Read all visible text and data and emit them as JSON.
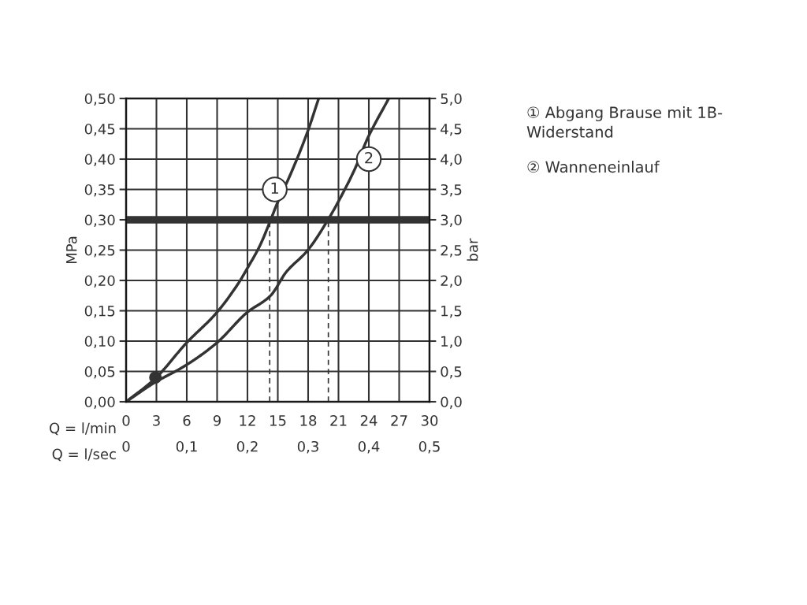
{
  "chart_data": {
    "type": "line",
    "xlabel": "Q = l/min",
    "x2label": "Q = l/sec",
    "ylabel": "MPa",
    "y2label": "bar",
    "xlim": [
      0,
      30
    ],
    "xticks": [
      0,
      3,
      6,
      9,
      12,
      15,
      18,
      21,
      24,
      27,
      30
    ],
    "x2lim": [
      0,
      0.5
    ],
    "x2ticks": [
      {
        "value": 0,
        "label": "0"
      },
      {
        "value": 0.1,
        "label": "0,1"
      },
      {
        "value": 0.2,
        "label": "0,2"
      },
      {
        "value": 0.3,
        "label": "0,3"
      },
      {
        "value": 0.4,
        "label": "0,4"
      },
      {
        "value": 0.5,
        "label": "0,5"
      }
    ],
    "ylim": [
      0,
      0.5
    ],
    "yticks": [
      {
        "value": 0,
        "label": "0,00"
      },
      {
        "value": 0.05,
        "label": "0,05"
      },
      {
        "value": 0.1,
        "label": "0,10"
      },
      {
        "value": 0.15,
        "label": "0,15"
      },
      {
        "value": 0.2,
        "label": "0,20"
      },
      {
        "value": 0.25,
        "label": "0,25"
      },
      {
        "value": 0.3,
        "label": "0,30"
      },
      {
        "value": 0.35,
        "label": "0,35"
      },
      {
        "value": 0.4,
        "label": "0,40"
      },
      {
        "value": 0.45,
        "label": "0,45"
      },
      {
        "value": 0.5,
        "label": "0,50"
      }
    ],
    "y2lim": [
      0,
      5
    ],
    "y2ticks": [
      {
        "value": 0,
        "label": "0,0"
      },
      {
        "value": 0.5,
        "label": "0,5"
      },
      {
        "value": 1,
        "label": "1,0"
      },
      {
        "value": 1.5,
        "label": "1,5"
      },
      {
        "value": 2,
        "label": "2,0"
      },
      {
        "value": 2.5,
        "label": "2,5"
      },
      {
        "value": 3,
        "label": "3,0"
      },
      {
        "value": 3.5,
        "label": "3,5"
      },
      {
        "value": 4,
        "label": "4,0"
      },
      {
        "value": 4.5,
        "label": "4,5"
      },
      {
        "value": 5,
        "label": "5,0"
      }
    ],
    "grid": true,
    "series": [
      {
        "color": "#333333",
        "line_style": "solid",
        "x": [
          0,
          2.86,
          5.97,
          8.96,
          11.17,
          11.95,
          13.25,
          14.23,
          14.94,
          16.23,
          17.92,
          19.04
        ],
        "values": [
          0,
          0.038,
          0.097,
          0.147,
          0.197,
          0.219,
          0.258,
          0.297,
          0.327,
          0.374,
          0.444,
          0.5
        ]
      },
      {
        "color": "#333333",
        "line_style": "solid",
        "x": [
          0,
          2.86,
          5.71,
          8.96,
          11.95,
          14.29,
          15.84,
          17.92,
          20.0,
          21.56,
          22.6,
          23.9,
          25.97
        ],
        "values": [
          0,
          0.032,
          0.058,
          0.097,
          0.147,
          0.175,
          0.214,
          0.249,
          0.301,
          0.348,
          0.383,
          0.435,
          0.5
        ]
      },
      {
        "color": "#333333",
        "line_style": "dashed",
        "x": [
          14.2,
          14.2
        ],
        "values": [
          0,
          0.3
        ]
      },
      {
        "color": "#333333",
        "line_style": "dashed",
        "x": [
          20.0,
          20.0
        ],
        "values": [
          0,
          0.3
        ]
      },
      {
        "type": "scatter",
        "color": "#333333",
        "marker": "circle",
        "x": [
          2.9
        ],
        "values": [
          0.04
        ]
      }
    ],
    "ref_lines": [
      {
        "axis": "y",
        "value": 0.3,
        "label": null,
        "color": "#333333",
        "line_style": "solid"
      }
    ],
    "annotations": [
      {
        "text": "1",
        "x": 14.7,
        "y": 0.35
      },
      {
        "text": "2",
        "x": 24.0,
        "y": 0.4
      },
      "① Abgang Brause mit 1B-\nWiderstand",
      "② Wanneneinlauf"
    ]
  }
}
